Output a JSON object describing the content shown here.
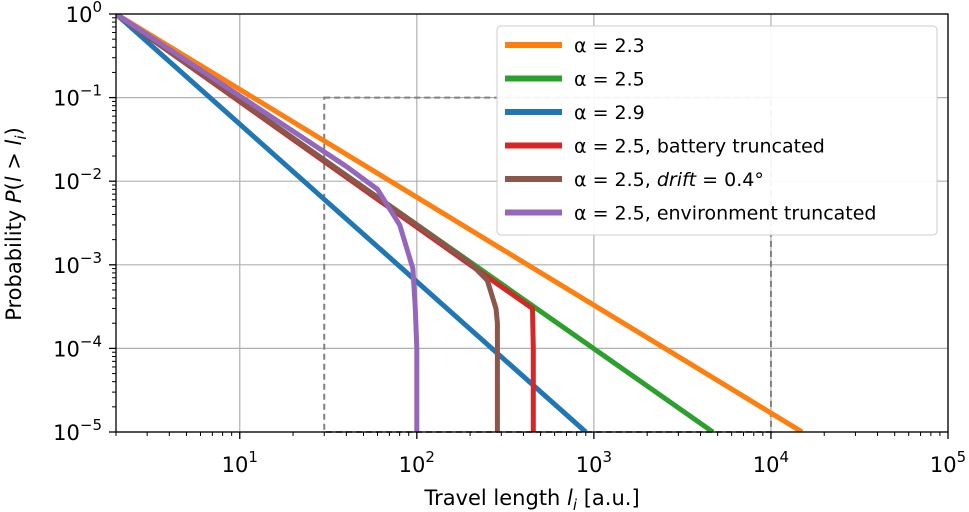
{
  "chart_data": {
    "type": "line",
    "xlabel": "Travel length l_i [a.u.]",
    "ylabel": "Probability P(l > l_i)",
    "x_scale": "log",
    "y_scale": "log",
    "xlim": [
      2,
      100000
    ],
    "ylim": [
      1e-05,
      1
    ],
    "grid": true,
    "legend_placement": "top-right",
    "x_ticks": [
      {
        "base": "10",
        "exp": "1",
        "value": 10
      },
      {
        "base": "10",
        "exp": "2",
        "value": 100
      },
      {
        "base": "10",
        "exp": "3",
        "value": 1000
      },
      {
        "base": "10",
        "exp": "4",
        "value": 10000
      },
      {
        "base": "10",
        "exp": "5",
        "value": 100000
      }
    ],
    "y_ticks": [
      {
        "base": "10",
        "exp": "0",
        "value": 1
      },
      {
        "base": "10",
        "exp": "−1",
        "value": 0.1
      },
      {
        "base": "10",
        "exp": "−2",
        "value": 0.01
      },
      {
        "base": "10",
        "exp": "−3",
        "value": 0.001
      },
      {
        "base": "10",
        "exp": "−4",
        "value": 0.0001
      },
      {
        "base": "10",
        "exp": "−5",
        "value": 1e-05
      }
    ],
    "series": [
      {
        "name": "α = 2.3",
        "color": "#ff7f0e",
        "x": [
          2,
          15000
        ],
        "y": [
          1,
          1e-05
        ]
      },
      {
        "name": "α = 2.5",
        "color": "#2ca02c",
        "x": [
          2,
          4700
        ],
        "y": [
          1,
          1e-05
        ]
      },
      {
        "name": "α = 2.9",
        "color": "#1f77b4",
        "x": [
          2,
          900
        ],
        "y": [
          1,
          1e-05
        ]
      },
      {
        "name": "α = 2.5, battery truncated",
        "color": "#d62728",
        "x": [
          2,
          200,
          450,
          455,
          455
        ],
        "y": [
          1,
          0.001,
          0.0003,
          0.0001,
          1e-05
        ]
      },
      {
        "name": "α = 2.5, drift = 0.4°",
        "color": "#8c564b",
        "x": [
          2,
          100,
          200,
          250,
          280,
          285,
          285
        ],
        "y": [
          1,
          0.003,
          0.00105,
          0.00065,
          0.0003,
          0.0002,
          1e-05
        ]
      },
      {
        "name": "α = 2.5, environment truncated",
        "color": "#9467bd",
        "x": [
          2,
          40,
          60,
          80,
          95,
          98,
          100,
          100
        ],
        "y": [
          1,
          0.015,
          0.008,
          0.003,
          0.0009,
          0.0003,
          0.0001,
          1e-05
        ]
      }
    ],
    "dashed_boxes": [
      {
        "x": [
          30,
          10000
        ],
        "y": [
          1e-05,
          0.1
        ]
      }
    ]
  }
}
